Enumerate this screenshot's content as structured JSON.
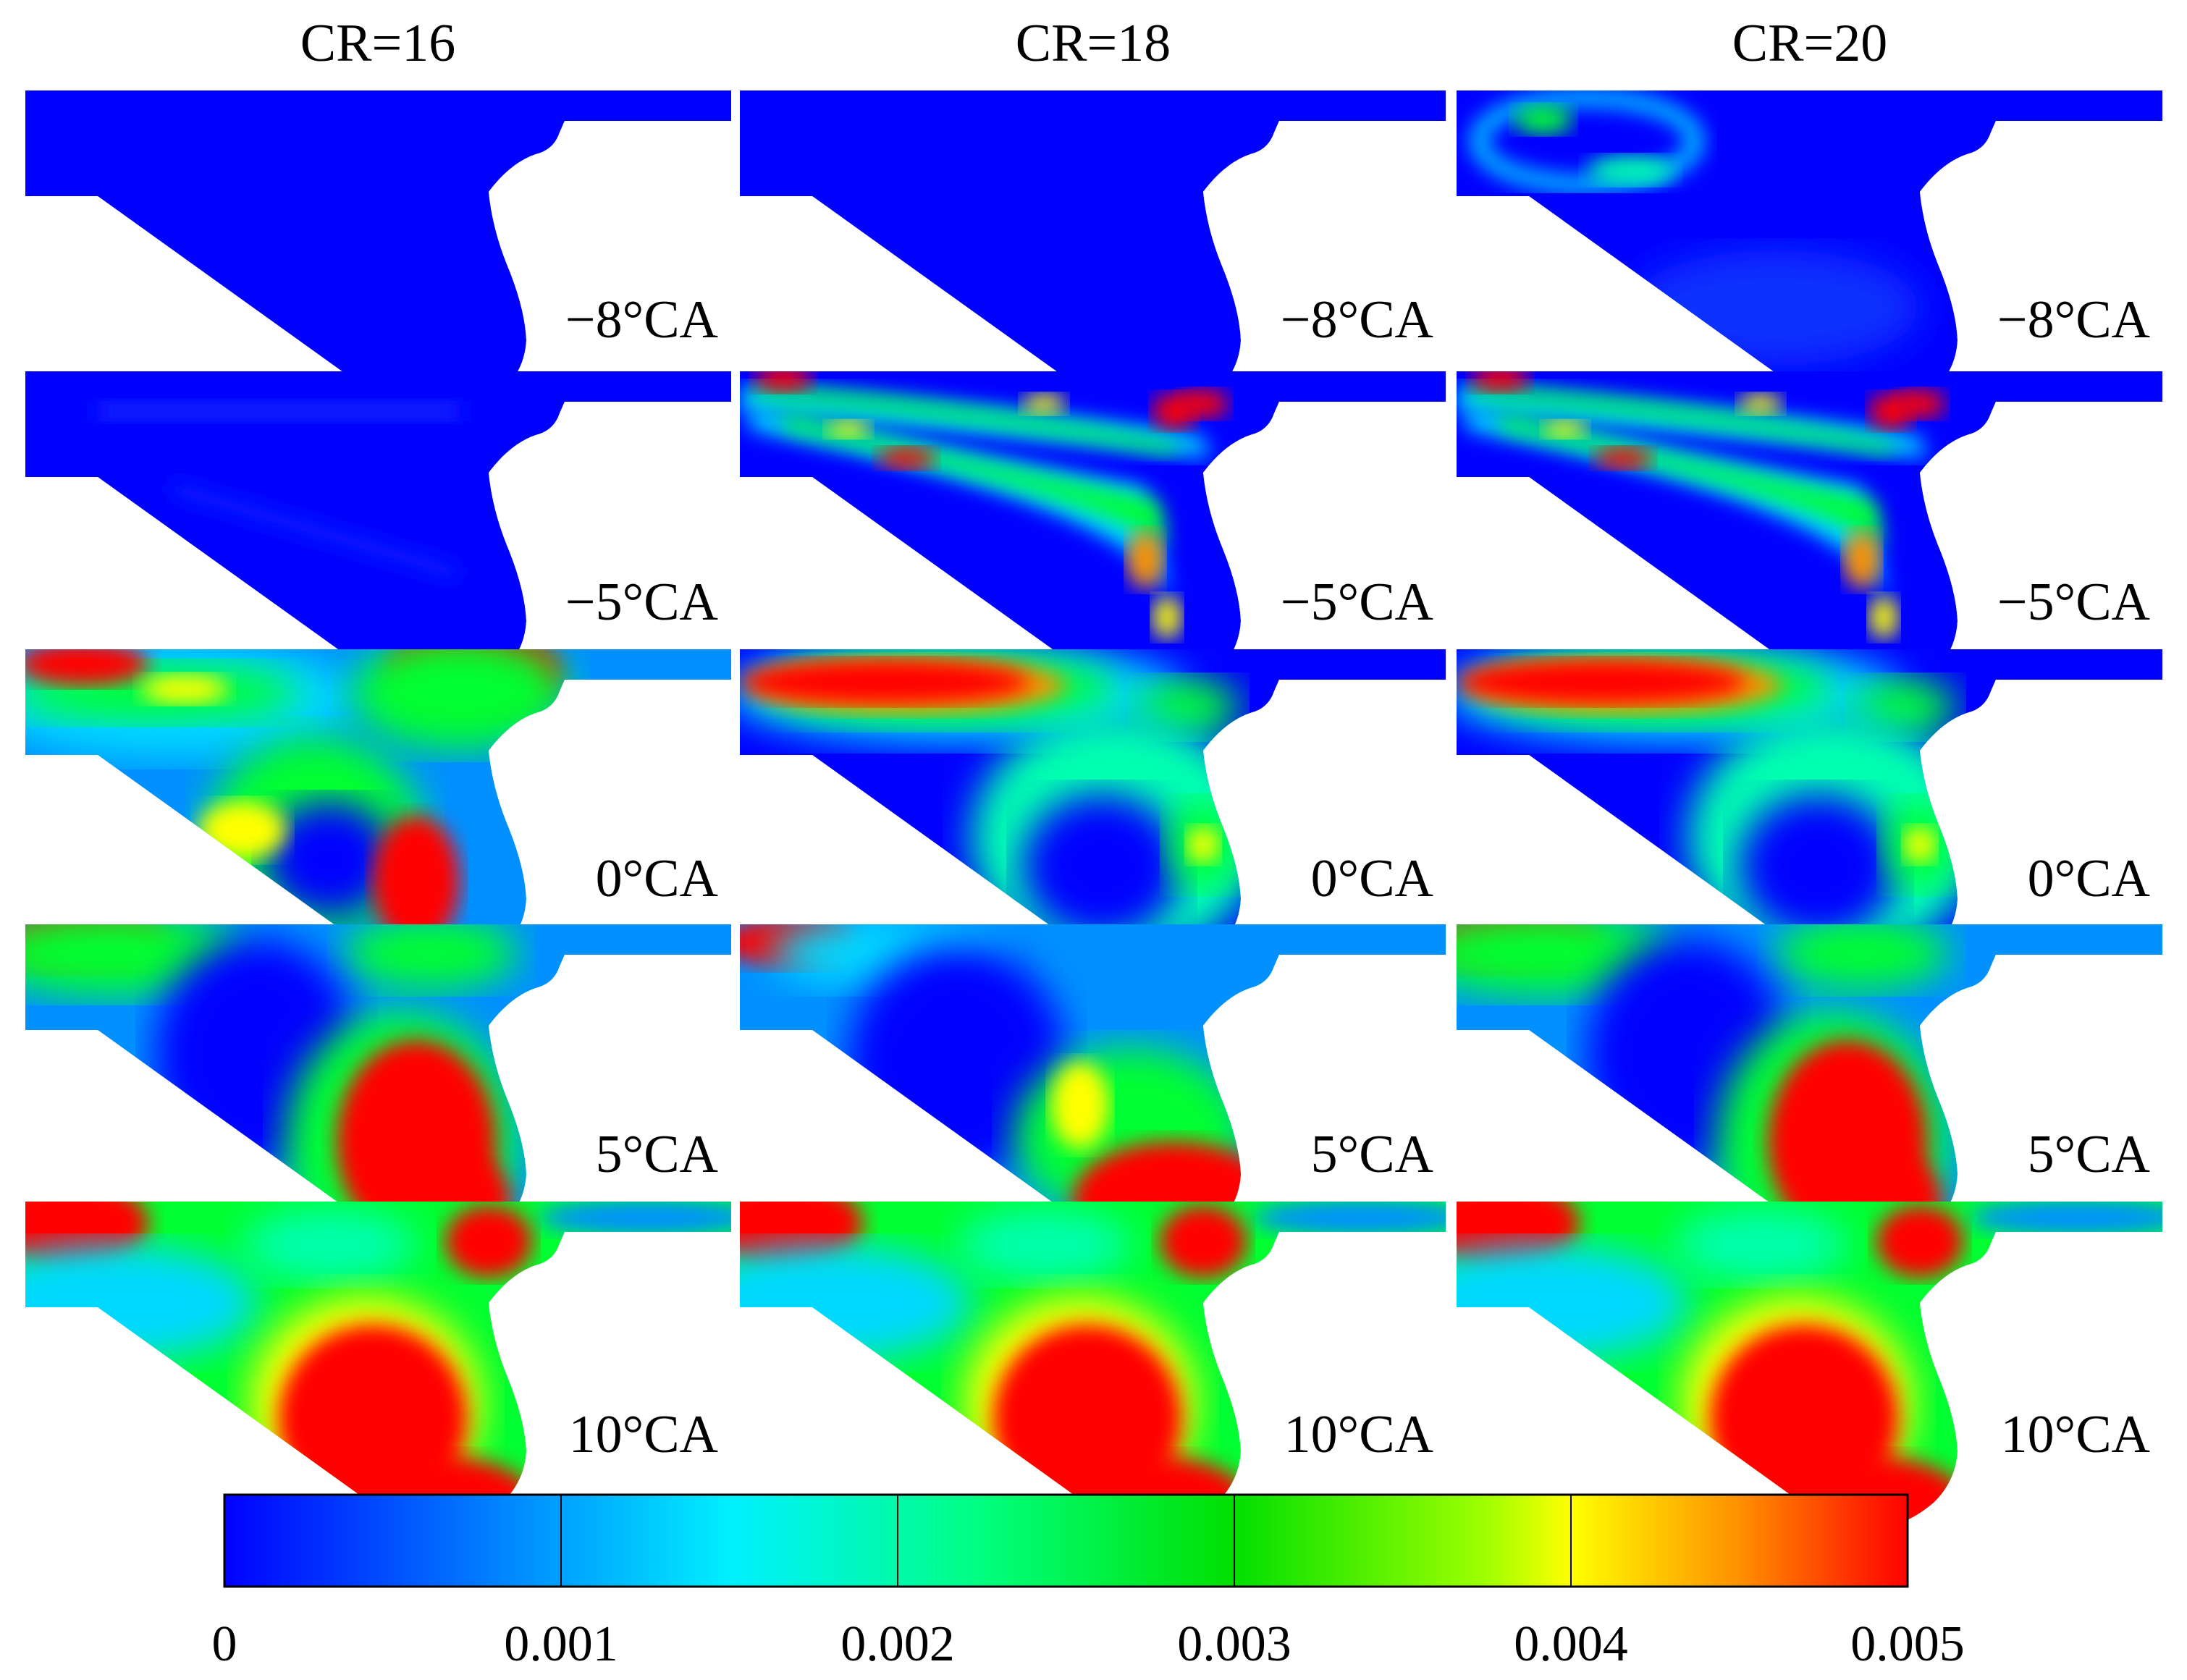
{
  "columns": [
    "CR=16",
    "CR=18",
    "CR=20"
  ],
  "crank_angles": [
    "−8°CA",
    "−5°CA",
    "0°CA",
    "5°CA",
    "10°CA"
  ],
  "colorbar": {
    "ticks": [
      "0",
      "0.001",
      "0.002",
      "0.003",
      "0.004",
      "0.005"
    ],
    "min": 0,
    "max": 0.005,
    "colors": [
      "#0000ff",
      "#00ffff",
      "#00ff00",
      "#ffff00",
      "#ff0000"
    ]
  },
  "panels": [
    [
      "uniform-low",
      "uniform-low",
      "ring-upper-left"
    ],
    [
      "uniform-low-faint",
      "band-ring",
      "band-ring"
    ],
    [
      "jet-and-pocket-hotspot",
      "upper-jet-bowl-ring",
      "upper-jet-bowl-ring"
    ],
    [
      "bowl-red-plume",
      "bowl-bottom-red",
      "bowl-red-plume"
    ],
    [
      "bowl-large-red",
      "bowl-large-red",
      "bowl-large-red"
    ]
  ]
}
